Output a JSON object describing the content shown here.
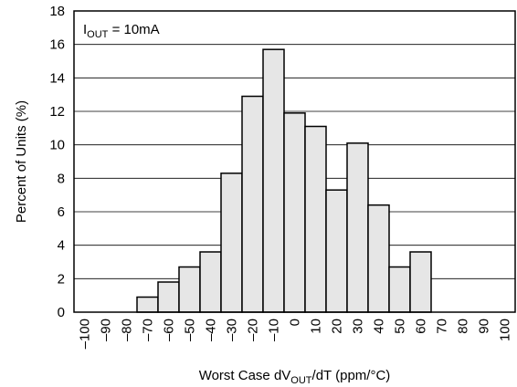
{
  "chart_data": {
    "type": "bar",
    "title": "",
    "annotation": {
      "prefix": "I",
      "subscript": "OUT",
      "suffix": " = 10mA"
    },
    "xlabel": {
      "prefix": "Worst Case dV",
      "subscript": "OUT",
      "suffix": "/dT (ppm/°C)"
    },
    "ylabel": "Percent of Units (%)",
    "ylim": [
      0,
      18
    ],
    "yticks": [
      0,
      2,
      4,
      6,
      8,
      10,
      12,
      14,
      16,
      18
    ],
    "xlim": [
      -105,
      105
    ],
    "xticks": [
      -100,
      -90,
      -80,
      -70,
      -60,
      -50,
      -40,
      -30,
      -20,
      -10,
      0,
      10,
      20,
      30,
      40,
      50,
      60,
      70,
      80,
      90,
      100
    ],
    "xtick_labels": [
      "–100",
      "–90",
      "–80",
      "–70",
      "–60",
      "–50",
      "–40",
      "–30",
      "–20",
      "–10",
      "0",
      "10",
      "20",
      "30",
      "40",
      "50",
      "60",
      "70",
      "80",
      "90",
      "100"
    ],
    "grid": "horizontal",
    "bin_width": 10,
    "categories": [
      "-70",
      "-60",
      "-50",
      "-40",
      "-30",
      "-20",
      "-10",
      "0",
      "10",
      "20",
      "30",
      "40",
      "50",
      "60"
    ],
    "values": [
      0.9,
      1.8,
      2.7,
      3.6,
      8.3,
      12.9,
      15.7,
      11.9,
      11.1,
      7.3,
      10.1,
      6.4,
      2.7,
      3.6
    ],
    "bar_color": "#e6e6e6"
  }
}
